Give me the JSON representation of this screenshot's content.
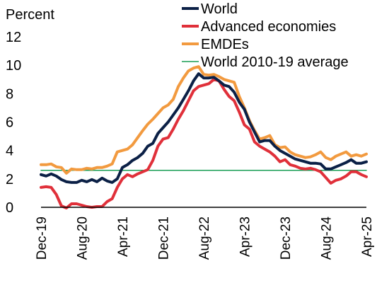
{
  "chart_data": {
    "type": "line",
    "unit_label": "Percent",
    "ylim": [
      0,
      12
    ],
    "yticks": [
      0,
      2,
      4,
      6,
      8,
      10,
      12
    ],
    "x_range": [
      "2019-12",
      "2025-04"
    ],
    "x_ticks": [
      {
        "date": "2019-12",
        "label": "Dec-19"
      },
      {
        "date": "2020-08",
        "label": "Aug-20"
      },
      {
        "date": "2021-04",
        "label": "Apr-21"
      },
      {
        "date": "2021-12",
        "label": "Dec-21"
      },
      {
        "date": "2022-08",
        "label": "Aug-22"
      },
      {
        "date": "2023-04",
        "label": "Apr-23"
      },
      {
        "date": "2023-12",
        "label": "Dec-23"
      },
      {
        "date": "2024-08",
        "label": "Aug-24"
      },
      {
        "date": "2025-04",
        "label": "Apr-25"
      }
    ],
    "grid": false,
    "legend_position": "top-right",
    "series": [
      {
        "name": "World",
        "color": "#0b2046",
        "values": [
          [
            "2019-12",
            2.3
          ],
          [
            "2020-01",
            2.2
          ],
          [
            "2020-02",
            2.35
          ],
          [
            "2020-03",
            2.2
          ],
          [
            "2020-04",
            1.95
          ],
          [
            "2020-05",
            1.8
          ],
          [
            "2020-06",
            1.75
          ],
          [
            "2020-07",
            1.75
          ],
          [
            "2020-08",
            1.9
          ],
          [
            "2020-09",
            1.8
          ],
          [
            "2020-10",
            1.95
          ],
          [
            "2020-11",
            1.8
          ],
          [
            "2020-12",
            2.05
          ],
          [
            "2021-01",
            1.85
          ],
          [
            "2021-02",
            1.75
          ],
          [
            "2021-03",
            2.0
          ],
          [
            "2021-04",
            2.8
          ],
          [
            "2021-05",
            3.0
          ],
          [
            "2021-06",
            3.3
          ],
          [
            "2021-07",
            3.5
          ],
          [
            "2021-08",
            3.8
          ],
          [
            "2021-09",
            4.3
          ],
          [
            "2021-10",
            4.5
          ],
          [
            "2021-11",
            5.2
          ],
          [
            "2021-12",
            5.6
          ],
          [
            "2022-01",
            6.0
          ],
          [
            "2022-02",
            6.5
          ],
          [
            "2022-03",
            7.0
          ],
          [
            "2022-04",
            7.6
          ],
          [
            "2022-05",
            8.2
          ],
          [
            "2022-06",
            8.9
          ],
          [
            "2022-07",
            9.4
          ],
          [
            "2022-08",
            9.1
          ],
          [
            "2022-09",
            9.1
          ],
          [
            "2022-10",
            9.15
          ],
          [
            "2022-11",
            8.9
          ],
          [
            "2022-12",
            8.6
          ],
          [
            "2023-01",
            8.5
          ],
          [
            "2023-02",
            8.1
          ],
          [
            "2023-03",
            7.4
          ],
          [
            "2023-04",
            6.9
          ],
          [
            "2023-05",
            6.0
          ],
          [
            "2023-06",
            5.3
          ],
          [
            "2023-07",
            4.6
          ],
          [
            "2023-08",
            4.7
          ],
          [
            "2023-09",
            4.7
          ],
          [
            "2023-10",
            4.3
          ],
          [
            "2023-11",
            4.0
          ],
          [
            "2023-12",
            3.8
          ],
          [
            "2024-01",
            3.6
          ],
          [
            "2024-02",
            3.4
          ],
          [
            "2024-03",
            3.3
          ],
          [
            "2024-04",
            3.2
          ],
          [
            "2024-05",
            3.1
          ],
          [
            "2024-06",
            3.1
          ],
          [
            "2024-07",
            3.05
          ],
          [
            "2024-08",
            2.7
          ],
          [
            "2024-09",
            2.7
          ],
          [
            "2024-10",
            2.85
          ],
          [
            "2024-11",
            3.0
          ],
          [
            "2024-12",
            3.15
          ],
          [
            "2025-01",
            3.35
          ],
          [
            "2025-02",
            3.1
          ],
          [
            "2025-03",
            3.1
          ],
          [
            "2025-04",
            3.2
          ]
        ]
      },
      {
        "name": "Advanced economies",
        "color": "#e0303a",
        "values": [
          [
            "2019-12",
            1.4
          ],
          [
            "2020-01",
            1.45
          ],
          [
            "2020-02",
            1.4
          ],
          [
            "2020-03",
            0.9
          ],
          [
            "2020-04",
            0.1
          ],
          [
            "2020-05",
            -0.05
          ],
          [
            "2020-06",
            0.25
          ],
          [
            "2020-07",
            0.25
          ],
          [
            "2020-08",
            0.15
          ],
          [
            "2020-09",
            0.05
          ],
          [
            "2020-10",
            0.0
          ],
          [
            "2020-11",
            0.05
          ],
          [
            "2020-12",
            0.05
          ],
          [
            "2021-01",
            0.4
          ],
          [
            "2021-02",
            0.6
          ],
          [
            "2021-03",
            1.4
          ],
          [
            "2021-04",
            2.0
          ],
          [
            "2021-05",
            2.3
          ],
          [
            "2021-06",
            2.15
          ],
          [
            "2021-07",
            2.35
          ],
          [
            "2021-08",
            2.5
          ],
          [
            "2021-09",
            2.65
          ],
          [
            "2021-10",
            3.3
          ],
          [
            "2021-11",
            4.3
          ],
          [
            "2021-12",
            4.8
          ],
          [
            "2022-01",
            4.9
          ],
          [
            "2022-02",
            5.5
          ],
          [
            "2022-03",
            6.2
          ],
          [
            "2022-04",
            6.8
          ],
          [
            "2022-05",
            7.5
          ],
          [
            "2022-06",
            8.2
          ],
          [
            "2022-07",
            8.5
          ],
          [
            "2022-08",
            8.6
          ],
          [
            "2022-09",
            8.7
          ],
          [
            "2022-10",
            9.0
          ],
          [
            "2022-11",
            8.9
          ],
          [
            "2022-12",
            8.3
          ],
          [
            "2023-01",
            7.8
          ],
          [
            "2023-02",
            7.5
          ],
          [
            "2023-03",
            6.7
          ],
          [
            "2023-04",
            5.8
          ],
          [
            "2023-05",
            5.5
          ],
          [
            "2023-06",
            4.6
          ],
          [
            "2023-07",
            4.3
          ],
          [
            "2023-08",
            4.1
          ],
          [
            "2023-09",
            3.9
          ],
          [
            "2023-10",
            3.6
          ],
          [
            "2023-11",
            3.2
          ],
          [
            "2023-12",
            3.35
          ],
          [
            "2024-01",
            3.0
          ],
          [
            "2024-02",
            2.9
          ],
          [
            "2024-03",
            2.75
          ],
          [
            "2024-04",
            2.7
          ],
          [
            "2024-05",
            2.75
          ],
          [
            "2024-06",
            2.65
          ],
          [
            "2024-07",
            2.5
          ],
          [
            "2024-08",
            2.1
          ],
          [
            "2024-09",
            1.7
          ],
          [
            "2024-10",
            1.9
          ],
          [
            "2024-11",
            2.0
          ],
          [
            "2024-12",
            2.2
          ],
          [
            "2025-01",
            2.5
          ],
          [
            "2025-02",
            2.5
          ],
          [
            "2025-03",
            2.3
          ],
          [
            "2025-04",
            2.15
          ]
        ]
      },
      {
        "name": "EMDEs",
        "color": "#f29a3f",
        "values": [
          [
            "2019-12",
            3.0
          ],
          [
            "2020-01",
            3.0
          ],
          [
            "2020-02",
            3.05
          ],
          [
            "2020-03",
            2.85
          ],
          [
            "2020-04",
            2.8
          ],
          [
            "2020-05",
            2.4
          ],
          [
            "2020-06",
            2.7
          ],
          [
            "2020-07",
            2.65
          ],
          [
            "2020-08",
            2.65
          ],
          [
            "2020-09",
            2.75
          ],
          [
            "2020-10",
            2.7
          ],
          [
            "2020-11",
            2.8
          ],
          [
            "2020-12",
            2.8
          ],
          [
            "2021-01",
            2.9
          ],
          [
            "2021-02",
            3.05
          ],
          [
            "2021-03",
            3.9
          ],
          [
            "2021-04",
            4.0
          ],
          [
            "2021-05",
            4.1
          ],
          [
            "2021-06",
            4.4
          ],
          [
            "2021-07",
            4.9
          ],
          [
            "2021-08",
            5.4
          ],
          [
            "2021-09",
            5.85
          ],
          [
            "2021-10",
            6.2
          ],
          [
            "2021-11",
            6.6
          ],
          [
            "2021-12",
            7.0
          ],
          [
            "2022-01",
            7.2
          ],
          [
            "2022-02",
            7.6
          ],
          [
            "2022-03",
            8.5
          ],
          [
            "2022-04",
            9.1
          ],
          [
            "2022-05",
            9.6
          ],
          [
            "2022-06",
            9.8
          ],
          [
            "2022-07",
            9.9
          ],
          [
            "2022-08",
            9.35
          ],
          [
            "2022-09",
            9.3
          ],
          [
            "2022-10",
            9.35
          ],
          [
            "2022-11",
            9.2
          ],
          [
            "2022-12",
            9.0
          ],
          [
            "2023-01",
            8.9
          ],
          [
            "2023-02",
            8.8
          ],
          [
            "2023-03",
            7.8
          ],
          [
            "2023-04",
            7.0
          ],
          [
            "2023-05",
            6.1
          ],
          [
            "2023-06",
            5.4
          ],
          [
            "2023-07",
            4.8
          ],
          [
            "2023-08",
            4.9
          ],
          [
            "2023-09",
            5.05
          ],
          [
            "2023-10",
            4.4
          ],
          [
            "2023-11",
            4.2
          ],
          [
            "2023-12",
            4.25
          ],
          [
            "2024-01",
            3.9
          ],
          [
            "2024-02",
            3.7
          ],
          [
            "2024-03",
            3.6
          ],
          [
            "2024-04",
            3.5
          ],
          [
            "2024-05",
            3.55
          ],
          [
            "2024-06",
            3.7
          ],
          [
            "2024-07",
            3.9
          ],
          [
            "2024-08",
            3.5
          ],
          [
            "2024-09",
            3.35
          ],
          [
            "2024-10",
            3.6
          ],
          [
            "2024-11",
            3.75
          ],
          [
            "2024-12",
            3.9
          ],
          [
            "2025-01",
            3.6
          ],
          [
            "2025-02",
            3.7
          ],
          [
            "2025-03",
            3.6
          ],
          [
            "2025-04",
            3.75
          ]
        ]
      },
      {
        "name": "World 2010-19 average",
        "color": "#1a9e55",
        "values": [
          [
            "2019-12",
            2.6
          ],
          [
            "2025-04",
            2.6
          ]
        ]
      }
    ]
  }
}
